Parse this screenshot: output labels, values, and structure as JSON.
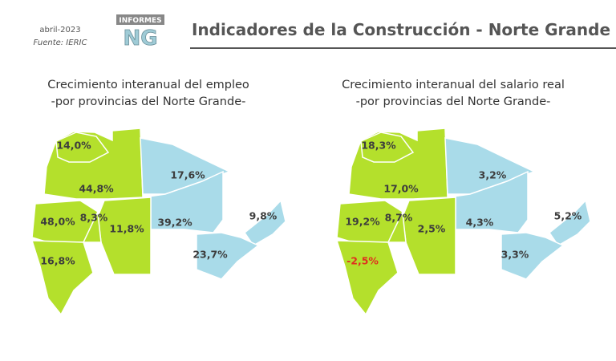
{
  "header": {
    "date": "abril-2023",
    "source": "Fuente: IERIC",
    "logo_top": "INFORMES",
    "logo_main": "NG",
    "title": "Indicadores de la Construcción - Norte  Grande"
  },
  "maps": [
    {
      "title": [
        "Crecimiento interanual del empleo",
        "-por provincias del Norte Grande-"
      ],
      "labels": [
        "14,0%",
        "44,8%",
        "17,6%",
        "39,2%",
        "9,8%",
        "48,0%",
        "8,3%",
        "11,8%",
        "16,8%",
        "23,7%"
      ]
    },
    {
      "title": [
        "Crecimiento interanual del salario real",
        "-por provincias del Norte Grande-"
      ],
      "labels": [
        "18,3%",
        "17,0%",
        "3,2%",
        "4,3%",
        "5,2%",
        "19,2%",
        "8,7%",
        "2,5%",
        "-2,5%",
        "3,3%"
      ]
    }
  ]
}
